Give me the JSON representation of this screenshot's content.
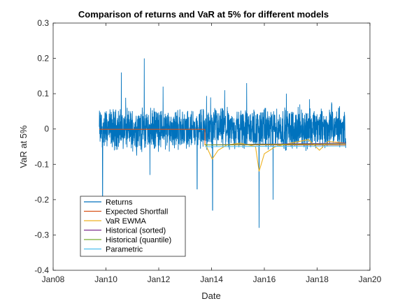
{
  "chart_data": {
    "type": "line",
    "title": "Comparison of returns and VaR at 5% for different models",
    "xlabel": "Date",
    "ylabel": "VaR at 5%",
    "xlim": [
      "2008-01-01",
      "2020-01-01"
    ],
    "ylim": [
      -0.4,
      0.3
    ],
    "x_ticks": [
      "Jan08",
      "Jan10",
      "Jan12",
      "Jan14",
      "Jan16",
      "Jan18",
      "Jan20"
    ],
    "y_ticks": [
      "-0.4",
      "-0.3",
      "-0.2",
      "-0.1",
      "0",
      "0.1",
      "0.2",
      "0.3"
    ],
    "grid": false,
    "legend_position": "bottom-left",
    "series": [
      {
        "name": "Returns",
        "color": "#0072BD",
        "date_range": [
          "2009-10-01",
          "2019-02-01"
        ],
        "typical_band": [
          -0.05,
          0.05
        ],
        "spikes": [
          {
            "date": "2009-11-15",
            "value": -0.2
          },
          {
            "date": "2010-08-01",
            "value": 0.16
          },
          {
            "date": "2011-06-15",
            "value": 0.2
          },
          {
            "date": "2011-09-01",
            "value": -0.13
          },
          {
            "date": "2012-03-01",
            "value": 0.12
          },
          {
            "date": "2013-06-15",
            "value": -0.17
          },
          {
            "date": "2014-01-15",
            "value": -0.23
          },
          {
            "date": "2014-07-01",
            "value": 0.11
          },
          {
            "date": "2015-05-01",
            "value": 0.13
          },
          {
            "date": "2015-10-20",
            "value": -0.28
          },
          {
            "date": "2016-05-01",
            "value": -0.2
          },
          {
            "date": "2016-11-01",
            "value": 0.1
          }
        ]
      },
      {
        "name": "Expected Shortfall",
        "color": "#D95319",
        "points": [
          [
            "2009-10-01",
            -0.001
          ],
          [
            "2013-10-01",
            -0.001
          ],
          [
            "2013-10-02",
            -0.045
          ],
          [
            "2019-02-01",
            -0.045
          ]
        ]
      },
      {
        "name": "VaR EWMA",
        "color": "#EDB120",
        "points": [
          [
            "2013-10-01",
            -0.04
          ],
          [
            "2014-01-10",
            -0.085
          ],
          [
            "2014-04-01",
            -0.06
          ],
          [
            "2014-08-01",
            -0.045
          ],
          [
            "2015-02-01",
            -0.04
          ],
          [
            "2015-09-01",
            -0.05
          ],
          [
            "2015-10-20",
            -0.12
          ],
          [
            "2016-01-01",
            -0.07
          ],
          [
            "2016-06-01",
            -0.05
          ],
          [
            "2017-01-01",
            -0.04
          ],
          [
            "2017-09-01",
            -0.03
          ],
          [
            "2018-02-01",
            -0.06
          ],
          [
            "2018-06-01",
            -0.035
          ],
          [
            "2019-02-01",
            -0.04
          ]
        ]
      },
      {
        "name": "Historical (sorted)",
        "color": "#7E2F8E",
        "points": [
          [
            "2013-10-01",
            -0.045
          ],
          [
            "2019-02-01",
            -0.04
          ]
        ]
      },
      {
        "name": "Historical (quantile)",
        "color": "#77AC30",
        "points": [
          [
            "2013-10-01",
            -0.045
          ],
          [
            "2019-02-01",
            -0.042
          ]
        ]
      },
      {
        "name": "Parametric",
        "color": "#4DBEEE",
        "points": [
          [
            "2013-10-01",
            -0.05
          ],
          [
            "2019-02-01",
            -0.048
          ]
        ]
      }
    ]
  }
}
